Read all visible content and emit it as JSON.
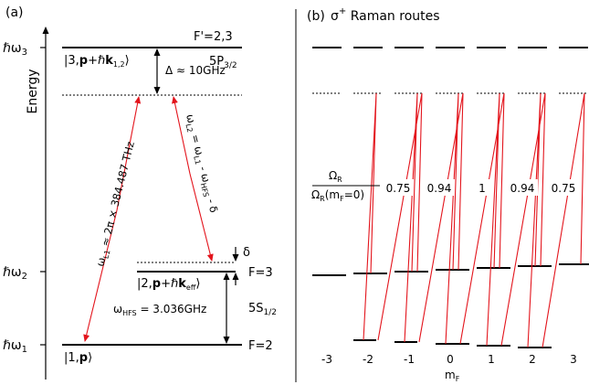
{
  "panel_a": {
    "label": "(a)",
    "energy_axis": "Energy",
    "omega3": "ℏω",
    "omega3_sub": "3",
    "omega2": "ℏω",
    "omega2_sub": "2",
    "omega1": "ℏω",
    "omega1_sub": "1",
    "fprime": "F'=2,3",
    "state3_pre": "|3,",
    "state3_p": "p",
    "state3_mid": "+ℏ",
    "state3_k": "k",
    "state3_sub": "1,2",
    "state3_post": "⟩",
    "p32_main": "5P",
    "p32_sub": "3/2",
    "delta_text": "Δ ≈ 10GHz",
    "omegaL1_main": "ω",
    "omegaL1_sub": "L1",
    "omegaL1_rest": " ≈ 2π × 384.487 THz",
    "omegaL2_main": "ω",
    "omegaL2_sub": "L2",
    "omegaL2_rest": " = ω",
    "omegaL2_sub2": "L1",
    "omegaL2_rest2": " - ω",
    "omegaL2_sub3": "HFS",
    "omegaL2_rest3": " - δ",
    "small_delta": "δ",
    "f3": "F=3",
    "state2_pre": "|2,",
    "state2_p": "p",
    "state2_mid": "+ℏ",
    "state2_k": "k",
    "state2_sub": "eff",
    "state2_post": "⟩",
    "hfs_main": "ω",
    "hfs_sub": "HFS",
    "hfs_rest": " = 3.036GHz",
    "s12_main": "5S",
    "s12_sub": "1/2",
    "f2": "F=2",
    "state1_pre": "|1,",
    "state1_p": "p",
    "state1_post": "⟩"
  },
  "panel_b": {
    "label": "(b)",
    "title_sigma": "σ",
    "title_plus": "+",
    "title_rest": " Raman routes",
    "ratio_num": "Ω",
    "ratio_num_sub": "R",
    "ratio_den": "Ω",
    "ratio_den_sub": "R",
    "ratio_den_rest": "(m",
    "ratio_den_sub2": "F",
    "ratio_den_rest2": "=0)",
    "mf_values": [
      "-3",
      "-2",
      "-1",
      "0",
      "1",
      "2",
      "3"
    ],
    "coupling_values": [
      "0.75",
      "0.94",
      "1",
      "0.94",
      "0.75"
    ],
    "mf_axis_main": "m",
    "mf_axis_sub": "F"
  },
  "colors": {
    "route": "#e3141c",
    "level": "#000000"
  }
}
